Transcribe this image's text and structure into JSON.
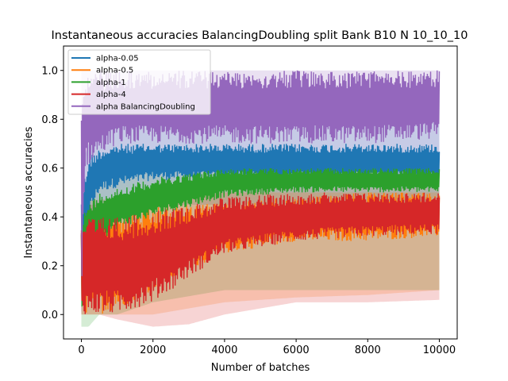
{
  "chart_data": {
    "type": "line",
    "title": "Instantaneous accuracies BalancingDoubling split Bank B10 N 10_10_10",
    "xlabel": "Number of batches",
    "ylabel": "Instantaneous accuracies",
    "xlim": [
      -500,
      10500
    ],
    "ylim": [
      -0.1,
      1.1
    ],
    "xticks": [
      0,
      2000,
      4000,
      6000,
      8000,
      10000
    ],
    "yticks": [
      0.0,
      0.2,
      0.4,
      0.6,
      0.8,
      1.0
    ],
    "xtick_labels": [
      "0",
      "2000",
      "4000",
      "6000",
      "8000",
      "10000"
    ],
    "ytick_labels": [
      "0.0",
      "0.2",
      "0.4",
      "0.6",
      "0.8",
      "1.0"
    ],
    "grid": false,
    "legend_position": "top-left",
    "series": [
      {
        "name": "alpha-0.05",
        "color": "#1f77b4",
        "x": [
          0,
          200,
          500,
          1000,
          2000,
          4000,
          6000,
          8000,
          10000
        ],
        "low": [
          0.2,
          0.4,
          0.5,
          0.52,
          0.55,
          0.55,
          0.55,
          0.55,
          0.55
        ],
        "high": [
          0.5,
          0.65,
          0.68,
          0.7,
          0.7,
          0.7,
          0.7,
          0.7,
          0.7
        ],
        "band_low": [
          0.0,
          0.3,
          0.45,
          0.45,
          0.45,
          0.45,
          0.45,
          0.45,
          0.45
        ],
        "band_high": [
          0.6,
          0.7,
          0.75,
          0.8,
          0.8,
          0.8,
          0.8,
          0.8,
          0.8
        ]
      },
      {
        "name": "alpha-0.5",
        "color": "#ff7f0e",
        "x": [
          0,
          200,
          500,
          1000,
          2000,
          4000,
          6000,
          8000,
          10000
        ],
        "low": [
          0.0,
          0.0,
          0.0,
          0.02,
          0.1,
          0.25,
          0.3,
          0.3,
          0.32
        ],
        "high": [
          0.4,
          0.42,
          0.42,
          0.43,
          0.44,
          0.46,
          0.48,
          0.5,
          0.5
        ],
        "band_low": [
          0.0,
          0.0,
          0.0,
          0.0,
          0.0,
          0.05,
          0.07,
          0.08,
          0.1
        ],
        "band_high": [
          0.45,
          0.47,
          0.47,
          0.48,
          0.5,
          0.52,
          0.52,
          0.52,
          0.52
        ]
      },
      {
        "name": "alpha-1",
        "color": "#2ca02c",
        "x": [
          0,
          200,
          500,
          1000,
          2000,
          4000,
          6000,
          8000,
          10000
        ],
        "low": [
          0.0,
          0.3,
          0.3,
          0.35,
          0.4,
          0.48,
          0.5,
          0.5,
          0.5
        ],
        "high": [
          0.4,
          0.45,
          0.5,
          0.52,
          0.56,
          0.6,
          0.6,
          0.6,
          0.6
        ],
        "band_low": [
          -0.05,
          -0.05,
          0.0,
          0.0,
          0.05,
          0.1,
          0.1,
          0.1,
          0.1
        ],
        "band_high": [
          0.5,
          0.55,
          0.6,
          0.6,
          0.62,
          0.62,
          0.62,
          0.62,
          0.62
        ]
      },
      {
        "name": "alpha-4",
        "color": "#d62728",
        "x": [
          0,
          200,
          500,
          1000,
          2000,
          3000,
          4000,
          6000,
          8000,
          10000
        ],
        "low": [
          0.0,
          0.0,
          0.0,
          0.0,
          0.05,
          0.15,
          0.25,
          0.3,
          0.32,
          0.33
        ],
        "high": [
          0.4,
          0.4,
          0.4,
          0.4,
          0.42,
          0.45,
          0.48,
          0.5,
          0.5,
          0.5
        ],
        "band_low": [
          0.0,
          0.0,
          0.0,
          -0.02,
          -0.05,
          -0.04,
          0.0,
          0.05,
          0.05,
          0.06
        ],
        "band_high": [
          0.45,
          0.45,
          0.45,
          0.45,
          0.45,
          0.48,
          0.5,
          0.5,
          0.5,
          0.5
        ]
      },
      {
        "name": "alpha BalancingDoubling",
        "color": "#9467bd",
        "x": [
          0,
          100,
          500,
          1000,
          2000,
          4000,
          6000,
          8000,
          10000
        ],
        "low": [
          0.0,
          0.6,
          0.65,
          0.7,
          0.7,
          0.7,
          0.7,
          0.7,
          0.72
        ],
        "high": [
          1.0,
          1.0,
          1.0,
          1.0,
          1.0,
          1.0,
          1.0,
          1.0,
          1.0
        ],
        "band_low": [
          0.0,
          0.3,
          0.4,
          0.45,
          0.5,
          0.5,
          0.5,
          0.5,
          0.5
        ],
        "band_high": [
          1.0,
          1.0,
          1.0,
          1.0,
          1.0,
          1.0,
          1.0,
          1.0,
          1.0
        ]
      }
    ]
  }
}
